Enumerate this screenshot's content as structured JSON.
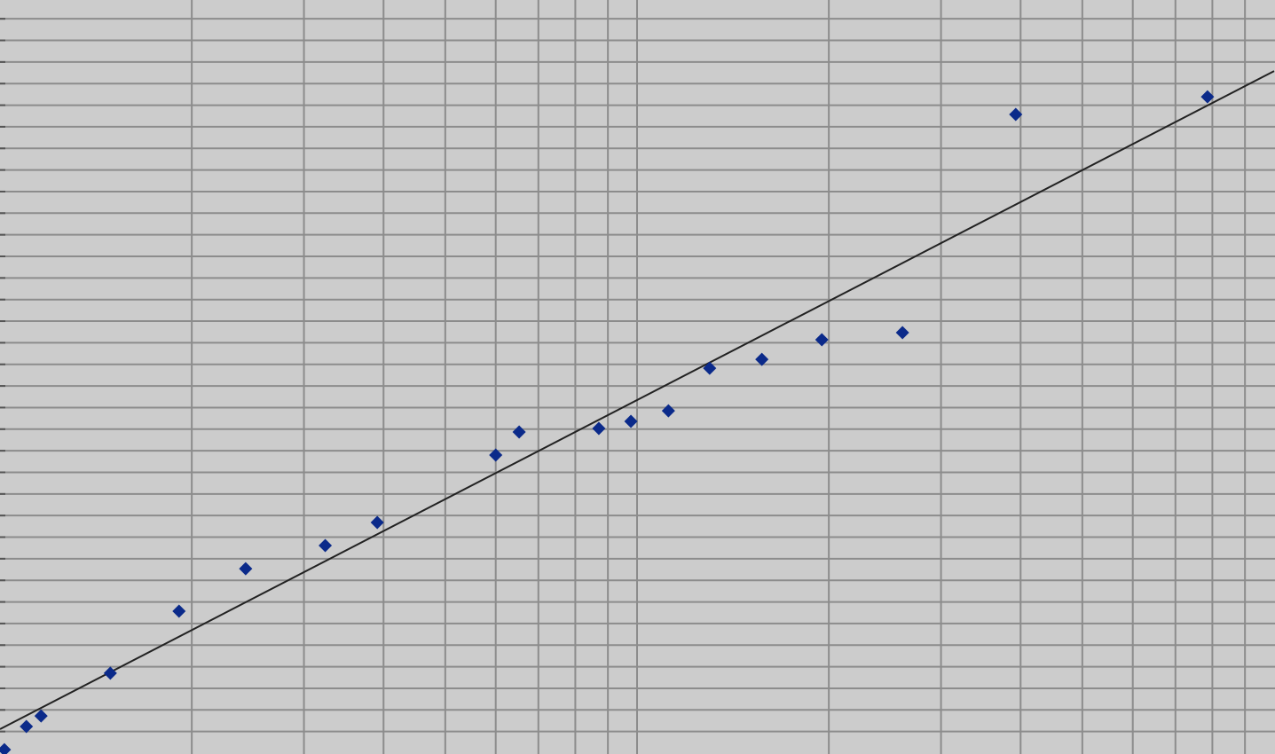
{
  "chart_data": {
    "type": "scatter",
    "xscale": "log",
    "xlim": [
      1,
      100
    ],
    "ylim": [
      0,
      34.87
    ],
    "xticks": [
      2,
      3,
      4,
      5,
      6,
      7,
      8,
      9,
      10,
      20,
      30,
      40,
      50,
      60,
      70,
      80,
      90
    ],
    "yticks": [
      1,
      2,
      3,
      4,
      5,
      6,
      7,
      8,
      9,
      10,
      11,
      12,
      13,
      14,
      15,
      16,
      17,
      18,
      19,
      20,
      21,
      22,
      23,
      24,
      25,
      26,
      27,
      28,
      29,
      30,
      31,
      32,
      33,
      34
    ],
    "grid": true,
    "background": "#cccccc",
    "grid_color": "#8c8c8c",
    "series": [
      {
        "color": "#0b2a8a",
        "marker": "diamond",
        "x": [
          1.016,
          1.1,
          1.16,
          1.49,
          1.91,
          2.43,
          3.24,
          3.91,
          6.0,
          6.53,
          8.71,
          9.78,
          11.2,
          13.0,
          15.7,
          19.5,
          26.1,
          39.3,
          78.6
        ],
        "values": [
          0.16,
          1.23,
          1.72,
          3.7,
          6.57,
          8.54,
          9.61,
          10.68,
          13.8,
          14.87,
          15.03,
          15.36,
          15.85,
          17.82,
          18.23,
          19.14,
          19.47,
          29.57,
          30.39
        ]
      },
      {
        "color": "#222222",
        "marker": "line",
        "x": [
          1,
          100
        ],
        "values": [
          1.11,
          31.58
        ]
      }
    ]
  }
}
